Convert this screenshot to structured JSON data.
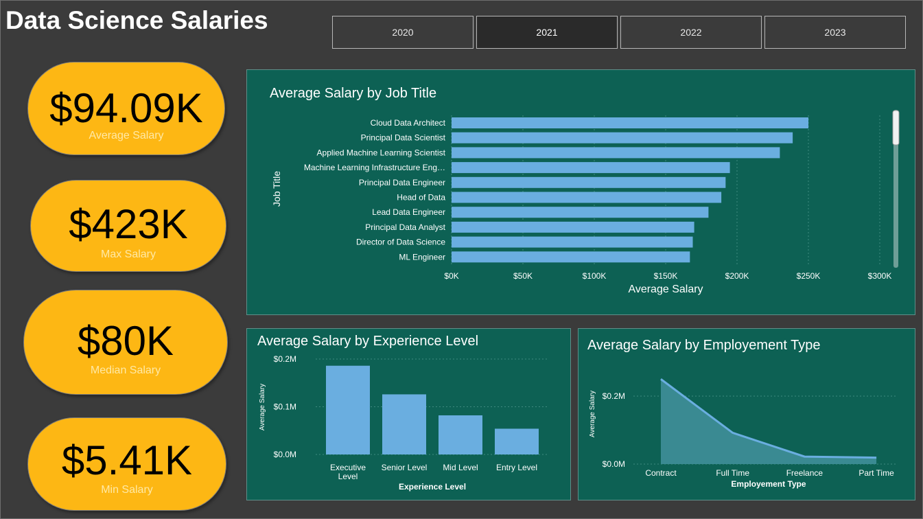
{
  "page": {
    "title": "Data Science Salaries"
  },
  "year_filter": {
    "options": [
      "2020",
      "2021",
      "2022",
      "2023"
    ],
    "selected": "2021"
  },
  "kpis": [
    {
      "value": "$94.09K",
      "label": "Average Salary"
    },
    {
      "value": "$423K",
      "label": "Max Salary"
    },
    {
      "value": "$80K",
      "label": "Median Salary"
    },
    {
      "value": "$5.41K",
      "label": "Min Salary"
    }
  ],
  "colors": {
    "background": "#3b3b3b",
    "kpi_fill": "#fdb714",
    "panel_fill": "#0d6154",
    "bar": "#6aaee0",
    "area": "#3a8a92"
  },
  "chart_data": [
    {
      "type": "bar",
      "orientation": "horizontal",
      "title": "Average Salary by Job Title",
      "xlabel": "Average Salary",
      "ylabel": "Job Title",
      "categories": [
        "Cloud Data Architect",
        "Principal Data Scientist",
        "Applied Machine Learning Scientist",
        "Machine Learning Infrastructure Eng…",
        "Principal Data Engineer",
        "Head of Data",
        "Lead Data Engineer",
        "Principal Data Analyst",
        "Director of Data Science",
        "ML Engineer"
      ],
      "values": [
        250000,
        239000,
        230000,
        195000,
        192000,
        189000,
        180000,
        170000,
        169000,
        167000
      ],
      "xlim": [
        0,
        300000
      ],
      "xticks": [
        "$0K",
        "$50K",
        "$100K",
        "$150K",
        "$200K",
        "$250K",
        "$300K"
      ],
      "grid": true
    },
    {
      "type": "bar",
      "title": "Average Salary by Experience Level",
      "xlabel": "Experience Level",
      "ylabel": "Average Salary",
      "categories": [
        "Executive Level",
        "Senior Level",
        "Mid Level",
        "Entry Level"
      ],
      "values": [
        186000,
        126000,
        82000,
        54000
      ],
      "ylim": [
        0,
        200000
      ],
      "yticks": [
        "$0.0M",
        "$0.1M",
        "$0.2M"
      ],
      "grid": true
    },
    {
      "type": "area",
      "title": "Average Salary by Employement Type",
      "xlabel": "Employement Type",
      "ylabel": "Average Salary",
      "categories": [
        "Contract",
        "Full Time",
        "Freelance",
        "Part Time"
      ],
      "values": [
        250000,
        92000,
        22000,
        19000
      ],
      "ylim": [
        0,
        200000
      ],
      "yticks": [
        "$0.0M",
        "$0.2M"
      ],
      "grid": true
    }
  ]
}
